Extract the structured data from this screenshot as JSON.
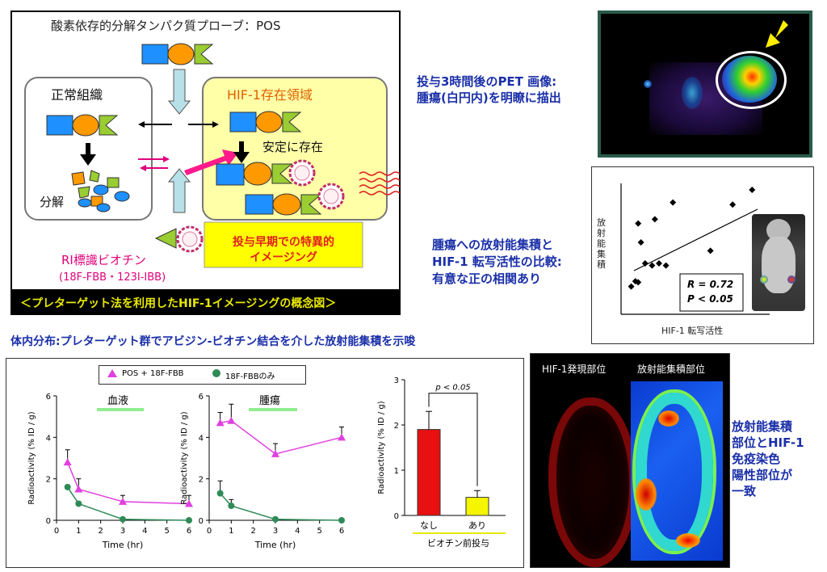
{
  "concept": {
    "title": "酸素依存的分解タンパク質プローブ：POS",
    "normal_label": "正常組織",
    "hif_label": "HIF-1存在領域",
    "stable_label": "安定に存在",
    "degrade_label": "分解",
    "ri_label_1": "RI標識ビオチン",
    "ri_label_2": "(18F-FBB・123I-IBB)",
    "early_1": "投与早期での特異的",
    "early_2": "イメージング",
    "caption": "＜プレターゲット法を利用したHIF-1イメージングの概念図＞"
  },
  "pet": {
    "desc_1": "投与3時間後のPET 画像:",
    "desc_2": "腫瘍(白円内)を明瞭に描出"
  },
  "corr": {
    "desc_1": "腫瘍への放射能集積と",
    "desc_2": "HIF-1 転写活性の比較:",
    "desc_3": "有意な正の相関あり",
    "ylabel": "放射能集積",
    "xlabel": "HIF-1 転写活性",
    "r_text": "R = 0.72",
    "p_text": "P < 0.05"
  },
  "biodist_title": "体内分布:プレターゲット群でアビジン-ビオチン結合を介した放射能集積を示唆",
  "legend": {
    "pos": "POS + 18F-FBB",
    "only": "18F-FBBのみ"
  },
  "blood_label": "血液",
  "tumor_label": "腫瘍",
  "bar_sig": "p < 0.05",
  "bar_xgroup": "ビオチン前投与",
  "histo": {
    "left_label": "HIF-1発現部位",
    "right_label": "放射能集積部位",
    "desc": [
      "放射能集積",
      "部位とHIF-1",
      "免疫染色",
      "陽性部位が",
      "一致"
    ]
  },
  "chart_data": [
    {
      "type": "line",
      "title": "血液",
      "xlabel": "Time (hr)",
      "ylabel": "Radioactivity (% ID / g)",
      "xlim": [
        0,
        6
      ],
      "ylim": [
        0,
        6
      ],
      "xticks": [
        "0",
        "1",
        "2",
        "3",
        "4",
        "5",
        "6"
      ],
      "yticks": [
        "0",
        "2",
        "4",
        "6"
      ],
      "series": [
        {
          "name": "POS + 18F-FBB",
          "color": "#e040e0",
          "x": [
            0.5,
            1,
            3,
            6
          ],
          "y": [
            2.8,
            1.5,
            0.9,
            0.8
          ],
          "err": [
            0.6,
            0.5,
            0.3,
            0.4
          ]
        },
        {
          "name": "18F-FBBのみ",
          "color": "#2e8b57",
          "x": [
            0.5,
            1,
            3,
            6
          ],
          "y": [
            1.6,
            0.8,
            0.05,
            0.0
          ],
          "err": [
            0.1,
            0.1,
            0.05,
            0.0
          ]
        }
      ]
    },
    {
      "type": "line",
      "title": "腫瘍",
      "xlabel": "Time (hr)",
      "ylabel": "Radioactivity (% ID / g)",
      "xlim": [
        0,
        6
      ],
      "ylim": [
        0,
        6
      ],
      "xticks": [
        "0",
        "1",
        "2",
        "3",
        "4",
        "5",
        "6"
      ],
      "yticks": [
        "0",
        "2",
        "4",
        "6"
      ],
      "series": [
        {
          "name": "POS + 18F-FBB",
          "color": "#e040e0",
          "x": [
            0.5,
            1,
            3,
            6
          ],
          "y": [
            4.7,
            4.8,
            3.2,
            4.0
          ],
          "err": [
            0.5,
            0.8,
            0.5,
            0.5
          ]
        },
        {
          "name": "18F-FBBのみ",
          "color": "#2e8b57",
          "x": [
            0.5,
            1,
            3,
            6
          ],
          "y": [
            1.3,
            0.7,
            0.05,
            0.0
          ],
          "err": [
            0.6,
            0.3,
            0.05,
            0.0
          ]
        }
      ]
    },
    {
      "type": "bar",
      "ylabel": "Radioactivity (% ID / g)",
      "ylim": [
        0,
        3
      ],
      "yticks": [
        "0",
        "1",
        "2",
        "3"
      ],
      "categories": [
        "なし",
        "あり"
      ],
      "values": [
        1.9,
        0.4
      ],
      "errors": [
        0.4,
        0.15
      ],
      "colors": [
        "#e81010",
        "#f5f500"
      ]
    },
    {
      "type": "scatter",
      "xlabel": "HIF-1 転写活性",
      "ylabel": "放射能集積",
      "x": [
        0.05,
        0.08,
        0.1,
        0.12,
        0.15,
        0.22,
        0.2,
        0.25,
        0.3,
        0.35,
        0.62,
        0.78,
        0.92,
        0.1
      ],
      "y": [
        0.08,
        0.13,
        0.12,
        0.5,
        0.3,
        0.72,
        0.28,
        0.3,
        0.28,
        0.88,
        0.42,
        0.86,
        1.0,
        0.68
      ]
    }
  ]
}
